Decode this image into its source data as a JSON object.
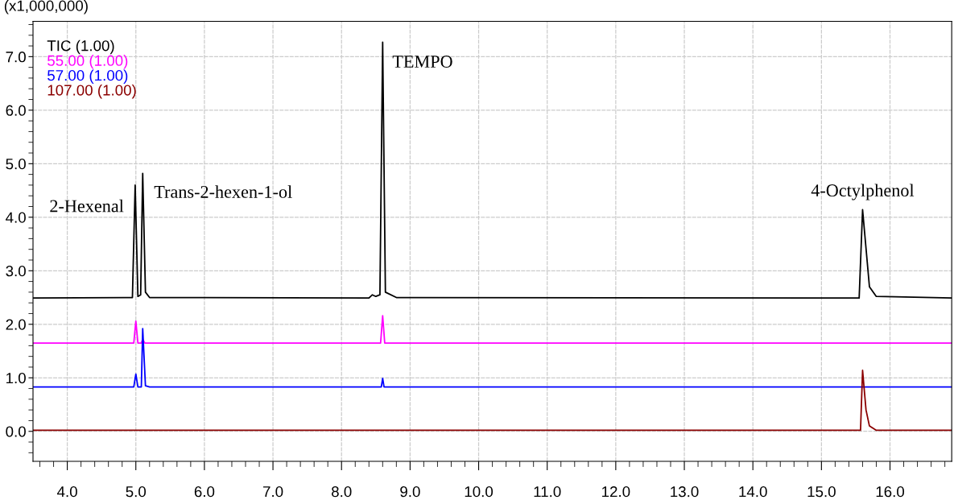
{
  "chart_data": {
    "type": "line",
    "ylabel": "(x1,000,000)",
    "series": [
      {
        "name": "TIC (1.00)",
        "color": "#000000",
        "x": [
          3.5,
          4.85,
          4.95,
          4.99,
          5.03,
          5.07,
          5.1,
          5.14,
          5.2,
          8.4,
          8.45,
          8.5,
          8.56,
          8.6,
          8.64,
          8.8,
          15.55,
          15.6,
          15.7,
          15.8,
          16.9
        ],
        "values": [
          2.49,
          2.5,
          2.5,
          4.6,
          2.52,
          2.55,
          4.82,
          2.6,
          2.5,
          2.49,
          2.55,
          2.52,
          2.55,
          7.27,
          2.6,
          2.5,
          2.49,
          4.14,
          2.7,
          2.52,
          2.49
        ]
      },
      {
        "name": "55.00 (1.00)",
        "color": "#ff00ff",
        "x": [
          3.5,
          4.97,
          5.0,
          5.03,
          5.08,
          5.1,
          5.13,
          8.57,
          8.6,
          8.63,
          16.9
        ],
        "values": [
          1.65,
          1.65,
          2.06,
          1.65,
          1.65,
          1.72,
          1.65,
          1.65,
          2.16,
          1.65,
          1.65
        ]
      },
      {
        "name": "57.00 (1.00)",
        "color": "#0000ff",
        "x": [
          3.5,
          4.97,
          5.0,
          5.03,
          5.08,
          5.1,
          5.14,
          5.2,
          8.58,
          8.6,
          8.62,
          16.9
        ],
        "values": [
          0.83,
          0.83,
          1.07,
          0.83,
          0.83,
          1.92,
          0.85,
          0.83,
          0.83,
          0.99,
          0.83,
          0.83
        ]
      },
      {
        "name": "107.00 (1.00)",
        "color": "#8b0000",
        "x": [
          3.5,
          15.57,
          15.6,
          15.65,
          15.7,
          15.8,
          16.9
        ],
        "values": [
          0.02,
          0.02,
          1.14,
          0.4,
          0.1,
          0.02,
          0.02
        ]
      }
    ],
    "annotations": [
      {
        "text": "2-Hexenal",
        "x": 4.99,
        "y": 4.6
      },
      {
        "text": "Trans-2-hexen-1-ol",
        "x": 5.1,
        "y": 4.82
      },
      {
        "text": "TEMPO",
        "x": 8.6,
        "y": 7.27
      },
      {
        "text": "4-Octylphenol",
        "x": 15.6,
        "y": 4.14
      }
    ],
    "xlim": [
      3.5,
      16.9
    ],
    "ylim": [
      -0.56,
      7.66
    ],
    "xticks": [
      {
        "value": 4,
        "label": "4.0"
      },
      {
        "value": 5,
        "label": "5.0"
      },
      {
        "value": 6,
        "label": "6.0"
      },
      {
        "value": 7,
        "label": "7.0"
      },
      {
        "value": 8,
        "label": "8.0"
      },
      {
        "value": 9,
        "label": "9.0"
      },
      {
        "value": 10,
        "label": "10.0"
      },
      {
        "value": 11,
        "label": "11.0"
      },
      {
        "value": 12,
        "label": "12.0"
      },
      {
        "value": 13,
        "label": "13.0"
      },
      {
        "value": 14,
        "label": "14.0"
      },
      {
        "value": 15,
        "label": "15.0"
      },
      {
        "value": 16,
        "label": "16.0"
      }
    ],
    "yticks": [
      {
        "value": 0,
        "label": "0.0"
      },
      {
        "value": 1,
        "label": "1.0"
      },
      {
        "value": 2,
        "label": "2.0"
      },
      {
        "value": 3,
        "label": "3.0"
      },
      {
        "value": 4,
        "label": "4.0"
      },
      {
        "value": 5,
        "label": "5.0"
      },
      {
        "value": 6,
        "label": "6.0"
      },
      {
        "value": 7,
        "label": "7.0"
      }
    ],
    "grid": true,
    "legend": "top left",
    "marker": "none",
    "line_style": "solid"
  }
}
